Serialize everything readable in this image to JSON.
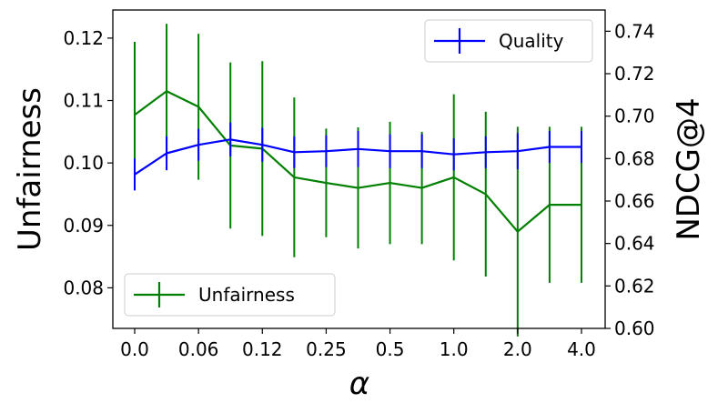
{
  "chart_data": {
    "type": "line",
    "categories": [
      "0.0",
      "0.06",
      "0.12",
      "0.25",
      "0.5",
      "1.0",
      "2.0",
      "4.0"
    ],
    "x": [
      0,
      1,
      2,
      3,
      4,
      5,
      6,
      7,
      8,
      9,
      10,
      11,
      12,
      13,
      14
    ],
    "xlabel": "α",
    "x_tick_positions": [
      0,
      2,
      4,
      6,
      8,
      10,
      12,
      14
    ],
    "left_axis": {
      "label": "Unfairness",
      "ylim": [
        0.0735,
        0.1245
      ],
      "ticks": [
        0.08,
        0.09,
        0.1,
        0.11,
        0.12
      ],
      "tick_labels": [
        "0.08",
        "0.09",
        "0.10",
        "0.11",
        "0.12"
      ]
    },
    "right_axis": {
      "label": "NDCG@4",
      "ylim": [
        0.6,
        0.75
      ],
      "ticks": [
        0.6,
        0.62,
        0.64,
        0.66,
        0.68,
        0.7,
        0.72,
        0.74
      ],
      "tick_labels": [
        "0.60",
        "0.62",
        "0.64",
        "0.66",
        "0.68",
        "0.70",
        "0.72",
        "0.74"
      ]
    },
    "series": [
      {
        "name": "Unfairness",
        "axis": "left",
        "color": "#008000",
        "values": [
          0.1077,
          0.1115,
          0.109,
          0.1028,
          0.1023,
          0.0977,
          0.0968,
          0.096,
          0.0968,
          0.096,
          0.0977,
          0.095,
          0.089,
          0.0933,
          0.0933
        ],
        "errors": [
          0.0117,
          0.0108,
          0.0117,
          0.0133,
          0.014,
          0.0128,
          0.0087,
          0.0097,
          0.0098,
          0.009,
          0.0133,
          0.0132,
          0.0168,
          0.0125,
          0.0125
        ]
      },
      {
        "name": "Quality",
        "axis": "right",
        "color": "#0000ff",
        "values": [
          0.6725,
          0.6825,
          0.6865,
          0.689,
          0.6865,
          0.683,
          0.6835,
          0.6845,
          0.6835,
          0.6835,
          0.682,
          0.683,
          0.6835,
          0.6855,
          0.6855
        ],
        "errors": [
          0.0075,
          0.008,
          0.0075,
          0.008,
          0.008,
          0.0075,
          0.0075,
          0.0085,
          0.008,
          0.008,
          0.0075,
          0.0075,
          0.0085,
          0.0075,
          0.0075
        ]
      }
    ],
    "legends": [
      {
        "placement": "upper-right",
        "entries": [
          "Quality"
        ]
      },
      {
        "placement": "lower-left",
        "entries": [
          "Unfairness"
        ]
      }
    ],
    "grid": false
  }
}
